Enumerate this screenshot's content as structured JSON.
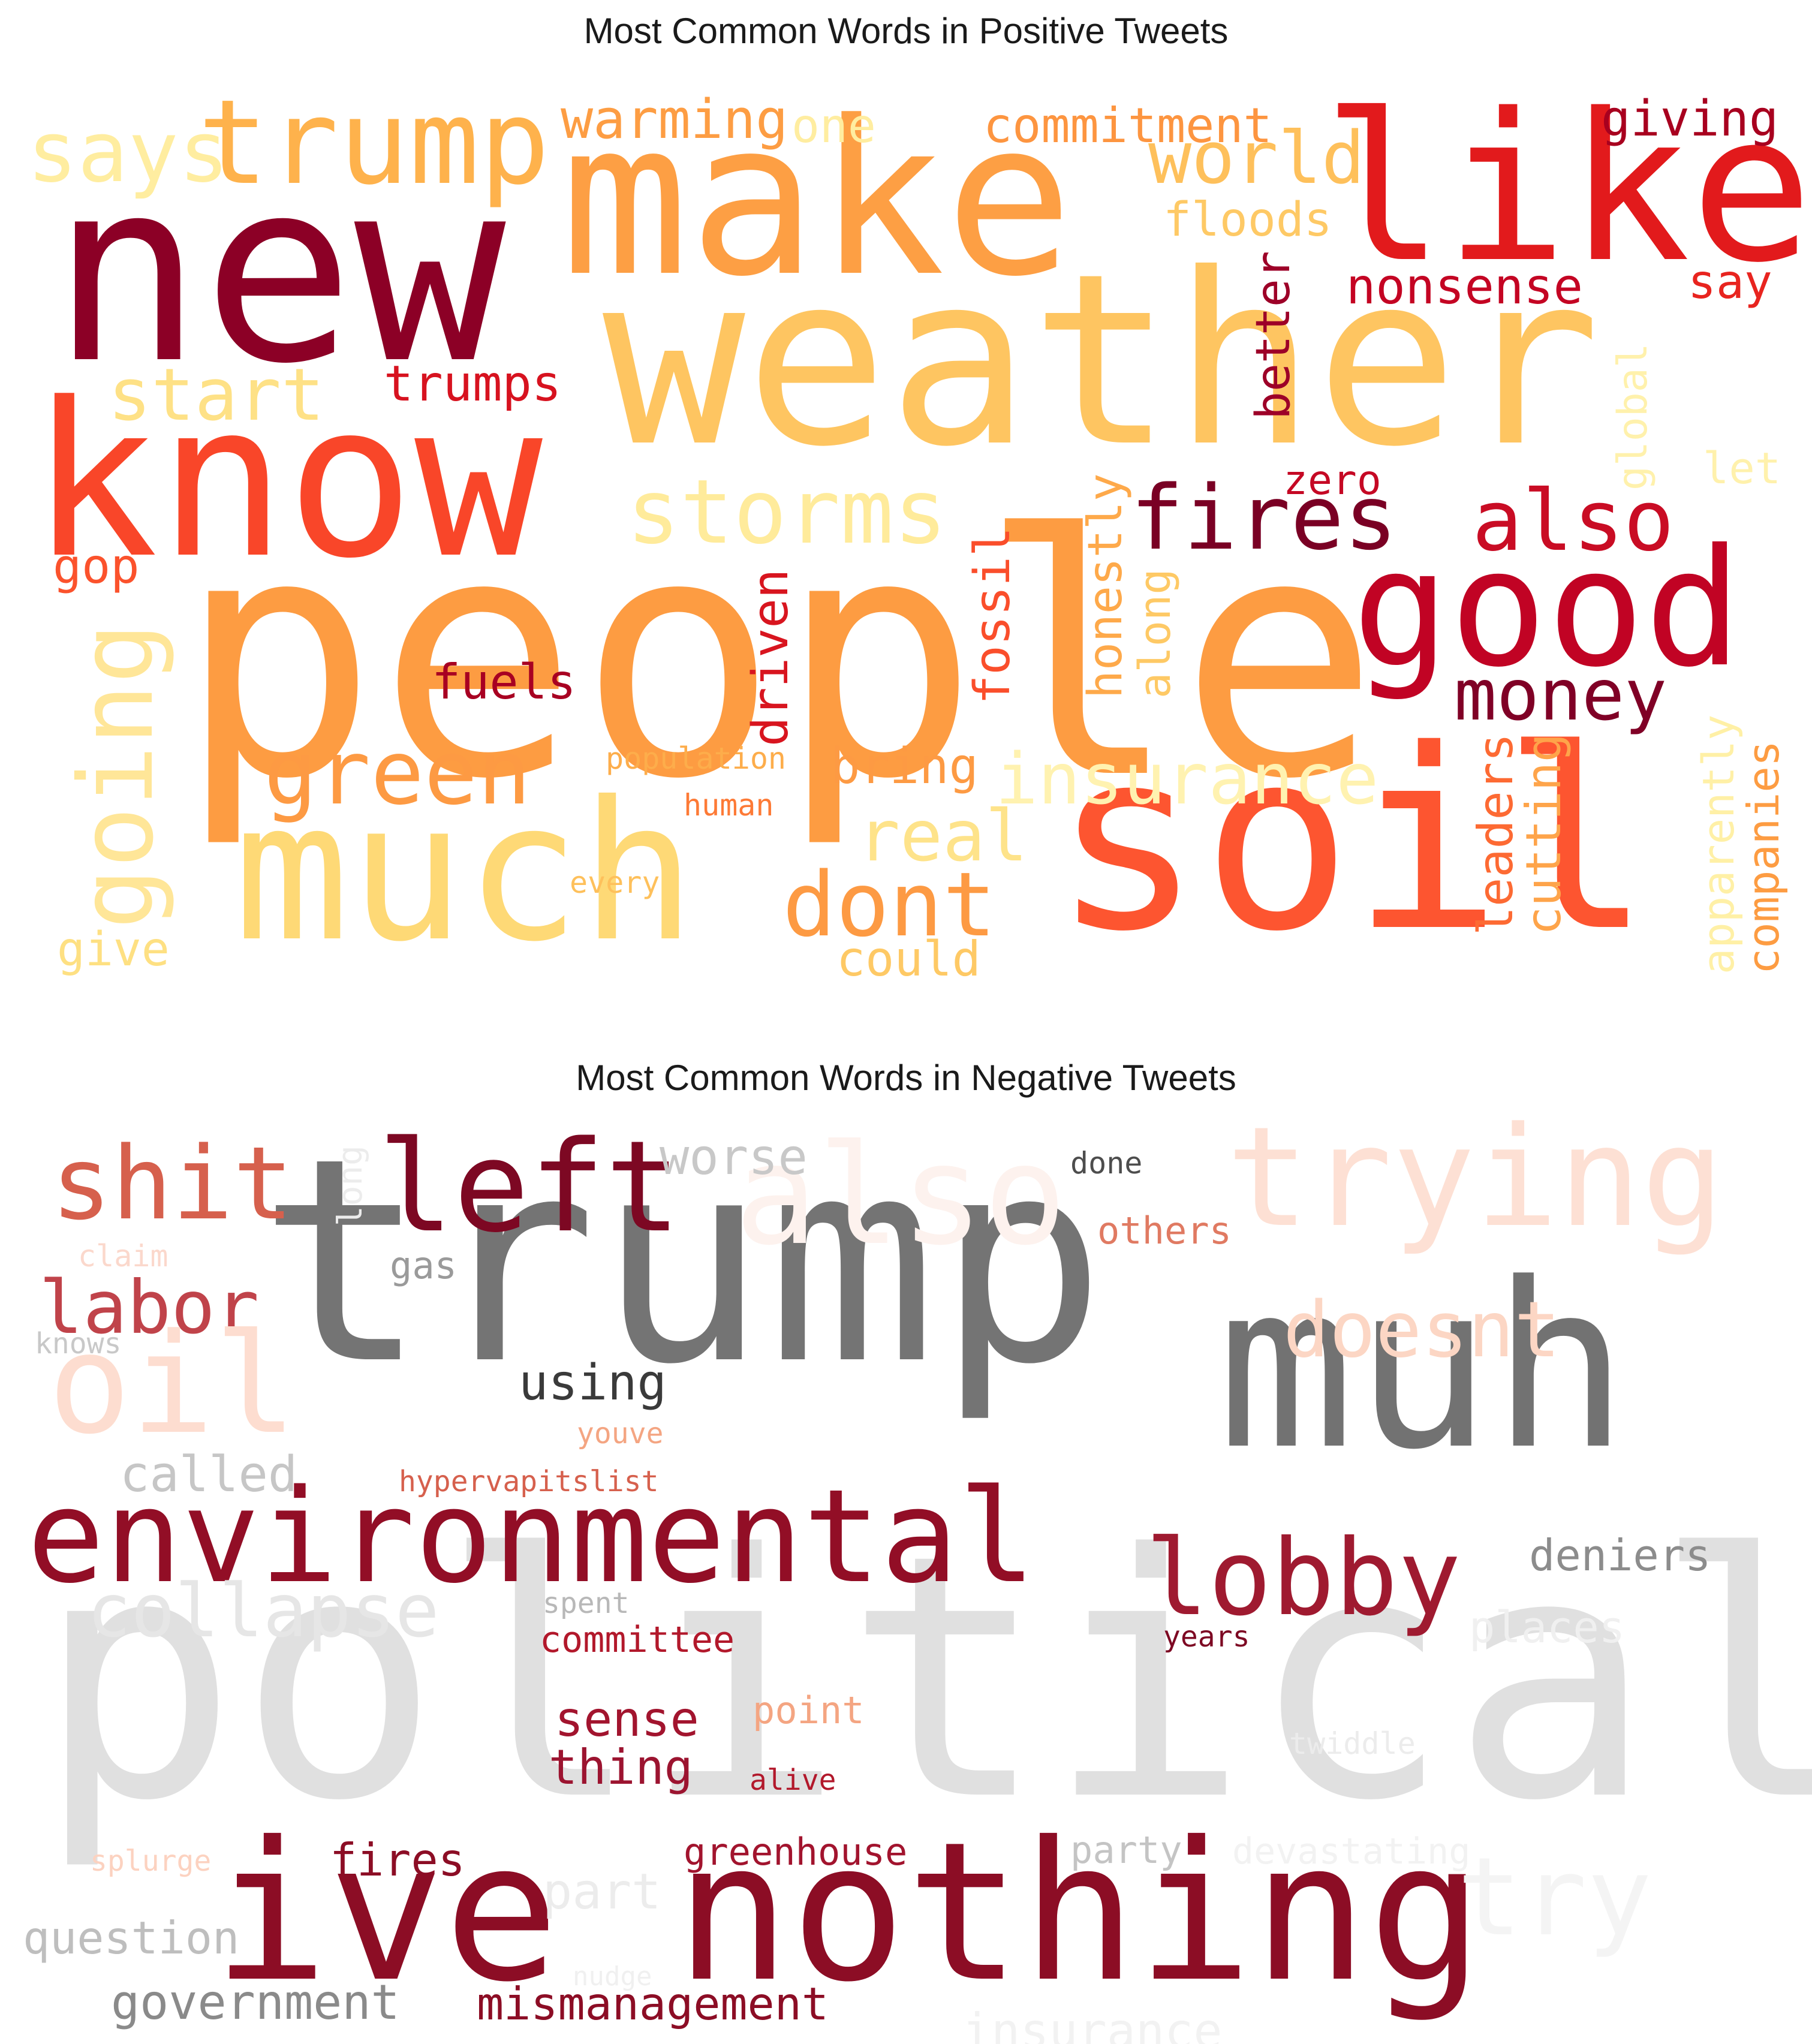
{
  "titles": {
    "positive": "Most Common Words in Positive Tweets",
    "negative": "Most Common Words in Negative Tweets"
  },
  "colormaps": {
    "positive": "YlOrRd",
    "negative": "RdGy"
  },
  "positive_words": [
    {
      "text": "people",
      "color": "#fd9c42"
    },
    {
      "text": "weather",
      "color": "#fec561"
    },
    {
      "text": "make",
      "color": "#fd9f44"
    },
    {
      "text": "new",
      "color": "#8c0026"
    },
    {
      "text": "know",
      "color": "#f94629"
    },
    {
      "text": "like",
      "color": "#e21a1c"
    },
    {
      "text": "soil",
      "color": "#fd5530"
    },
    {
      "text": "much",
      "color": "#fed976"
    },
    {
      "text": "good",
      "color": "#c10324"
    },
    {
      "text": "trump",
      "color": "#feb24c"
    },
    {
      "text": "says",
      "color": "#ffeda0"
    },
    {
      "text": "warming",
      "color": "#fd9d43"
    },
    {
      "text": "one",
      "color": "#ffeda0"
    },
    {
      "text": "commitment",
      "color": "#fd9540"
    },
    {
      "text": "giving",
      "color": "#a8001f"
    },
    {
      "text": "world",
      "color": "#fec05b"
    },
    {
      "text": "floods",
      "color": "#fec965"
    },
    {
      "text": "nonsense",
      "color": "#c40423"
    },
    {
      "text": "say",
      "color": "#e8241f"
    },
    {
      "text": "start",
      "color": "#fee186"
    },
    {
      "text": "trumps",
      "color": "#d7121f"
    },
    {
      "text": "storms",
      "color": "#ffeb9b"
    },
    {
      "text": "fires",
      "color": "#7a0024"
    },
    {
      "text": "also",
      "color": "#c90c24"
    },
    {
      "text": "zero",
      "color": "#c50824"
    },
    {
      "text": "better",
      "color": "#9d0028"
    },
    {
      "text": "global",
      "color": "#fff1ac"
    },
    {
      "text": "let",
      "color": "#fff1ac"
    },
    {
      "text": "gop",
      "color": "#fb522c"
    },
    {
      "text": "going",
      "color": "#ffe698"
    },
    {
      "text": "fuels",
      "color": "#a80022"
    },
    {
      "text": "money",
      "color": "#800026"
    },
    {
      "text": "driven",
      "color": "#d8151f"
    },
    {
      "text": "fossil",
      "color": "#fa4e2b"
    },
    {
      "text": "honestly",
      "color": "#fea94a"
    },
    {
      "text": "along",
      "color": "#fec965"
    },
    {
      "text": "green",
      "color": "#fd9a43"
    },
    {
      "text": "insurance",
      "color": "#fff2b0"
    },
    {
      "text": "population",
      "color": "#fdad4b"
    },
    {
      "text": "bring",
      "color": "#fd9a43"
    },
    {
      "text": "human",
      "color": "#fd7a36"
    },
    {
      "text": "real",
      "color": "#fee38a"
    },
    {
      "text": "dont",
      "color": "#fd9a43"
    },
    {
      "text": "leaders",
      "color": "#fd6a33"
    },
    {
      "text": "cutting",
      "color": "#fea44a"
    },
    {
      "text": "apparently",
      "color": "#fff0a6"
    },
    {
      "text": "companies",
      "color": "#fd9c42"
    },
    {
      "text": "every",
      "color": "#fec05b"
    },
    {
      "text": "give",
      "color": "#fee082"
    },
    {
      "text": "could",
      "color": "#fec965"
    }
  ],
  "negative_words": [
    {
      "text": "political",
      "color": "#e0e0e0"
    },
    {
      "text": "trump",
      "color": "#747474"
    },
    {
      "text": "muh",
      "color": "#727272"
    },
    {
      "text": "ive nothing",
      "color": "#8c0d25"
    },
    {
      "text": "environmental",
      "color": "#920e26"
    },
    {
      "text": "also",
      "color": "#fdf2ee"
    },
    {
      "text": "trying",
      "color": "#fde0d4"
    },
    {
      "text": "left",
      "color": "#7d0823"
    },
    {
      "text": "shit",
      "color": "#d6604d"
    },
    {
      "text": "worse",
      "color": "#c8c8c8"
    },
    {
      "text": "long",
      "color": "#ececec"
    },
    {
      "text": "done",
      "color": "#4d4d4d"
    },
    {
      "text": "claim",
      "color": "#fbd8cc"
    },
    {
      "text": "gas",
      "color": "#9a9a9a"
    },
    {
      "text": "others",
      "color": "#e07a62"
    },
    {
      "text": "labor",
      "color": "#c0434a"
    },
    {
      "text": "knows",
      "color": "#c8c8c8"
    },
    {
      "text": "doesnt",
      "color": "#fcd6c4"
    },
    {
      "text": "oil",
      "color": "#fdddd0"
    },
    {
      "text": "using",
      "color": "#3a3a3a"
    },
    {
      "text": "youve",
      "color": "#f4a582"
    },
    {
      "text": "called",
      "color": "#c6c6c6"
    },
    {
      "text": "hypervapitslist",
      "color": "#d6604d"
    },
    {
      "text": "lobby",
      "color": "#9f1a30"
    },
    {
      "text": "deniers",
      "color": "#8c8c8c"
    },
    {
      "text": "collapse",
      "color": "#e6e6e6"
    },
    {
      "text": "spent",
      "color": "#b8b8b8"
    },
    {
      "text": "committee",
      "color": "#b2182b"
    },
    {
      "text": "years",
      "color": "#7d0823"
    },
    {
      "text": "places",
      "color": "#f0f0f0"
    },
    {
      "text": "sense",
      "color": "#a2142e"
    },
    {
      "text": "thing",
      "color": "#9c1430"
    },
    {
      "text": "point",
      "color": "#f4a582"
    },
    {
      "text": "twiddle",
      "color": "#ececec"
    },
    {
      "text": "alive",
      "color": "#b2182b"
    },
    {
      "text": "splurge",
      "color": "#fcd2c0"
    },
    {
      "text": "fires",
      "color": "#8c0d25"
    },
    {
      "text": "greenhouse",
      "color": "#a2142e"
    },
    {
      "text": "party",
      "color": "#c4c4c4"
    },
    {
      "text": "devastating",
      "color": "#f2f2f2"
    },
    {
      "text": "part",
      "color": "#ececec"
    },
    {
      "text": "try",
      "color": "#f4f4f4"
    },
    {
      "text": "question",
      "color": "#bebebe"
    },
    {
      "text": "nudge",
      "color": "#f0f0f0"
    },
    {
      "text": "government",
      "color": "#8a8a8a"
    },
    {
      "text": "mismanagement",
      "color": "#8c0d25"
    },
    {
      "text": "insurance",
      "color": "#f2f2f2"
    }
  ]
}
